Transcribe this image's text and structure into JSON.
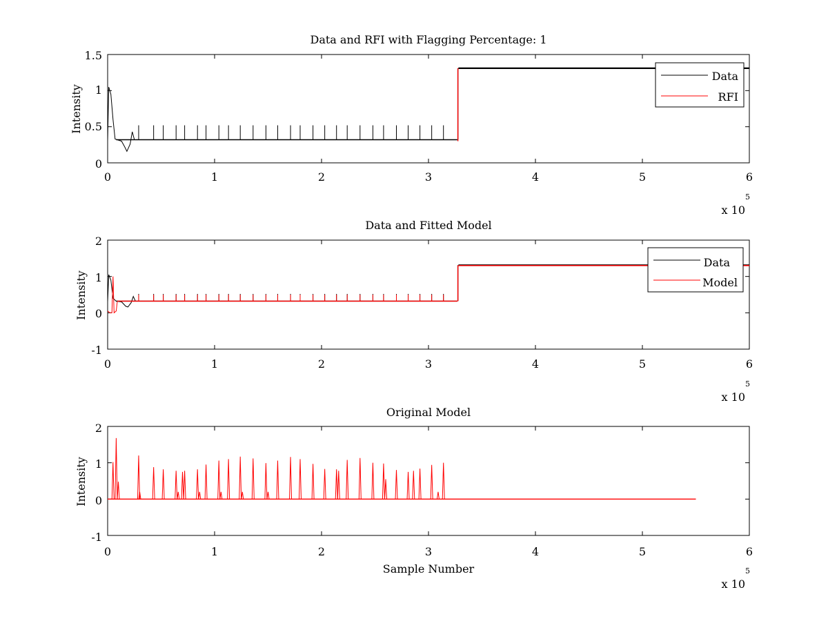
{
  "chart_data": [
    {
      "type": "line",
      "title": "Data and RFI with Flagging Percentage: 1",
      "xlabel": "",
      "ylabel": "Intensity",
      "xlim": [
        0,
        600000
      ],
      "ylim": [
        0,
        1.5
      ],
      "xticks": [
        "0",
        "1",
        "2",
        "3",
        "4",
        "5",
        "6"
      ],
      "yticks": [
        "0",
        "0.5",
        "1",
        "1.5"
      ],
      "x_exponent": "x 10",
      "x_exponent_power": "5",
      "legend": {
        "position": "top-right",
        "entries": [
          "Data",
          "RFI"
        ]
      },
      "series": [
        {
          "name": "Data",
          "color": "#000000",
          "baseline_segments": [
            {
              "x_start": 8000,
              "x_end": 327000,
              "y": 0.32
            },
            {
              "x_start": 328000,
              "x_end": 600000,
              "y": 1.31
            }
          ],
          "initial_points": [
            [
              0,
              0.3
            ],
            [
              1000,
              1.05
            ],
            [
              3000,
              0.95
            ],
            [
              5000,
              0.6
            ],
            [
              7000,
              0.33
            ],
            [
              13000,
              0.3
            ],
            [
              16000,
              0.22
            ],
            [
              18000,
              0.16
            ],
            [
              21000,
              0.26
            ],
            [
              23000,
              0.43
            ],
            [
              25000,
              0.32
            ]
          ],
          "spike_positions": [
            29000,
            43000,
            52000,
            64000,
            72000,
            84000,
            92000,
            104000,
            113000,
            124000,
            136000,
            148000,
            159000,
            171000,
            180000,
            192000,
            203000,
            214000,
            224000,
            236000,
            248000,
            258000,
            270000,
            281000,
            292000,
            303000,
            314000
          ],
          "spike_height": 0.52,
          "step": {
            "x": 327500,
            "from": 0.32,
            "to": 1.31
          }
        },
        {
          "name": "RFI",
          "color": "#ff0000",
          "step": {
            "x": 327500,
            "from": 0.3,
            "to": 1.31
          }
        }
      ]
    },
    {
      "type": "line",
      "title": "Data and Fitted Model",
      "xlabel": "",
      "ylabel": "Intensity",
      "xlim": [
        0,
        600000
      ],
      "ylim": [
        -1,
        2
      ],
      "xticks": [
        "0",
        "1",
        "2",
        "3",
        "4",
        "5",
        "6"
      ],
      "yticks": [
        "-1",
        "0",
        "1",
        "2"
      ],
      "x_exponent": "x 10",
      "x_exponent_power": "5",
      "legend": {
        "position": "top-right",
        "entries": [
          "Data",
          "Model"
        ]
      },
      "series": [
        {
          "name": "Data",
          "color": "#000000",
          "baseline_segments": [
            {
              "x_start": 8000,
              "x_end": 327000,
              "y": 0.32
            },
            {
              "x_start": 328000,
              "x_end": 600000,
              "y": 1.31
            }
          ],
          "initial_points": [
            [
              0,
              0.3
            ],
            [
              1000,
              1.05
            ],
            [
              3000,
              0.9
            ],
            [
              5000,
              0.4
            ],
            [
              8000,
              0.32
            ],
            [
              13000,
              0.3
            ],
            [
              17000,
              0.18
            ],
            [
              19000,
              0.16
            ],
            [
              22000,
              0.28
            ],
            [
              24000,
              0.45
            ],
            [
              26000,
              0.32
            ]
          ],
          "spike_positions": [
            29000,
            43000,
            52000,
            64000,
            72000,
            84000,
            92000,
            104000,
            113000,
            124000,
            136000,
            148000,
            159000,
            171000,
            180000,
            192000,
            203000,
            214000,
            224000,
            236000,
            248000,
            258000,
            270000,
            281000,
            292000,
            303000,
            314000
          ],
          "spike_height": 0.52,
          "step": {
            "x": 327500,
            "from": 0.32,
            "to": 1.31
          }
        },
        {
          "name": "Model",
          "color": "#ff0000",
          "initial_points": [
            [
              0,
              0.05
            ],
            [
              2000,
              0.0
            ],
            [
              4000,
              0.0
            ],
            [
              5000,
              1.0
            ],
            [
              6000,
              0.0
            ],
            [
              8000,
              0.05
            ],
            [
              9000,
              0.3
            ]
          ],
          "baseline_segments": [
            {
              "x_start": 9000,
              "x_end": 327000,
              "y": 0.32
            },
            {
              "x_start": 328000,
              "x_end": 600000,
              "y": 1.3
            }
          ],
          "spike_positions": [
            29000,
            43000,
            52000,
            64000,
            72000,
            84000,
            92000,
            104000,
            113000,
            124000,
            136000,
            148000,
            159000,
            171000,
            180000,
            192000,
            203000,
            214000,
            224000,
            236000,
            248000,
            258000,
            270000,
            281000,
            292000,
            303000,
            314000
          ],
          "spike_height": 0.5,
          "step": {
            "x": 327500,
            "from": 0.32,
            "to": 1.3
          }
        }
      ]
    },
    {
      "type": "line",
      "title": "Original Model",
      "xlabel": "Sample Number",
      "ylabel": "Intensity",
      "xlim": [
        0,
        600000
      ],
      "ylim": [
        -1,
        2
      ],
      "xticks": [
        "0",
        "1",
        "2",
        "3",
        "4",
        "5",
        "6"
      ],
      "yticks": [
        "-1",
        "0",
        "1",
        "2"
      ],
      "x_exponent": "x 10",
      "x_exponent_power": "5",
      "series": [
        {
          "name": "",
          "color": "#ff0000",
          "baseline_segments": [
            {
              "x_start": 0,
              "x_end": 550000,
              "y": 0.0
            }
          ],
          "spikes": [
            [
              5000,
              1.02
            ],
            [
              8000,
              1.68
            ],
            [
              10000,
              0.48
            ],
            [
              29000,
              1.2
            ],
            [
              30000,
              0.2
            ],
            [
              43000,
              0.88
            ],
            [
              52000,
              0.82
            ],
            [
              64000,
              0.78
            ],
            [
              66000,
              0.2
            ],
            [
              70000,
              0.75
            ],
            [
              72000,
              0.78
            ],
            [
              84000,
              0.82
            ],
            [
              86000,
              0.2
            ],
            [
              92000,
              0.95
            ],
            [
              104000,
              1.06
            ],
            [
              106000,
              0.2
            ],
            [
              113000,
              1.1
            ],
            [
              124000,
              1.17
            ],
            [
              126000,
              0.2
            ],
            [
              136000,
              1.12
            ],
            [
              148000,
              0.99
            ],
            [
              150000,
              0.2
            ],
            [
              159000,
              1.06
            ],
            [
              171000,
              1.16
            ],
            [
              180000,
              1.1
            ],
            [
              192000,
              0.97
            ],
            [
              203000,
              0.83
            ],
            [
              214000,
              0.82
            ],
            [
              216000,
              0.78
            ],
            [
              224000,
              1.08
            ],
            [
              236000,
              1.13
            ],
            [
              248000,
              1.0
            ],
            [
              258000,
              0.98
            ],
            [
              260000,
              0.55
            ],
            [
              270000,
              0.8
            ],
            [
              281000,
              0.75
            ],
            [
              286000,
              0.78
            ],
            [
              292000,
              0.84
            ],
            [
              303000,
              0.94
            ],
            [
              309000,
              0.2
            ],
            [
              314000,
              1.0
            ]
          ]
        }
      ]
    }
  ]
}
